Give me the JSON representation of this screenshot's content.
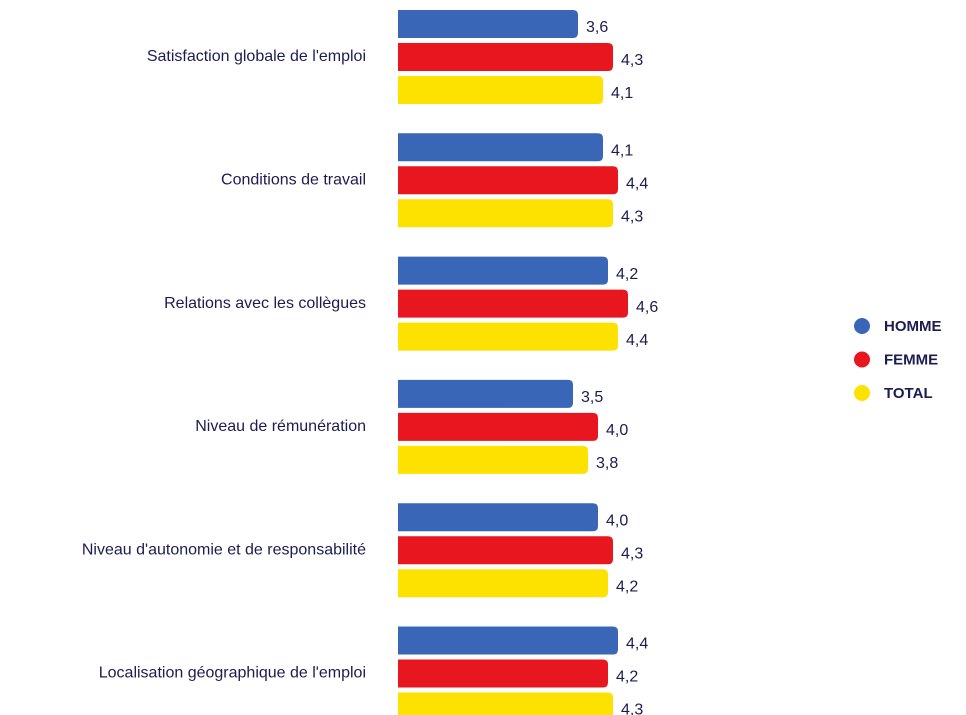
{
  "chart_data": {
    "type": "hbar",
    "categories": [
      "Satisfaction globale de l'emploi",
      "Conditions de travail",
      "Relations avec les collègues",
      "Niveau de rémunération",
      "Niveau d'autonomie et de responsabilité",
      "Localisation géographique de l'emploi"
    ],
    "series": [
      {
        "name": "HOMME",
        "color": "#3a66b8",
        "values": [
          3.6,
          4.1,
          4.2,
          3.5,
          4.0,
          4.4
        ],
        "value_labels": [
          "3,6",
          "4,1",
          "4,2",
          "3,5",
          "4,0",
          "4,4"
        ]
      },
      {
        "name": "FEMME",
        "color": "#e8161e",
        "values": [
          4.3,
          4.4,
          4.6,
          4.0,
          4.3,
          4.2
        ],
        "value_labels": [
          "4,3",
          "4,4",
          "4,6",
          "4,0",
          "4,3",
          "4,2"
        ]
      },
      {
        "name": "TOTAL",
        "color": "#fde200",
        "values": [
          4.1,
          4.3,
          4.4,
          3.8,
          4.2,
          4.3
        ],
        "value_labels": [
          "4,1",
          "4,3",
          "4,4",
          "3,8",
          "4,2",
          "4,3"
        ]
      }
    ],
    "xlim": [
      0,
      10
    ],
    "legend": "right"
  }
}
